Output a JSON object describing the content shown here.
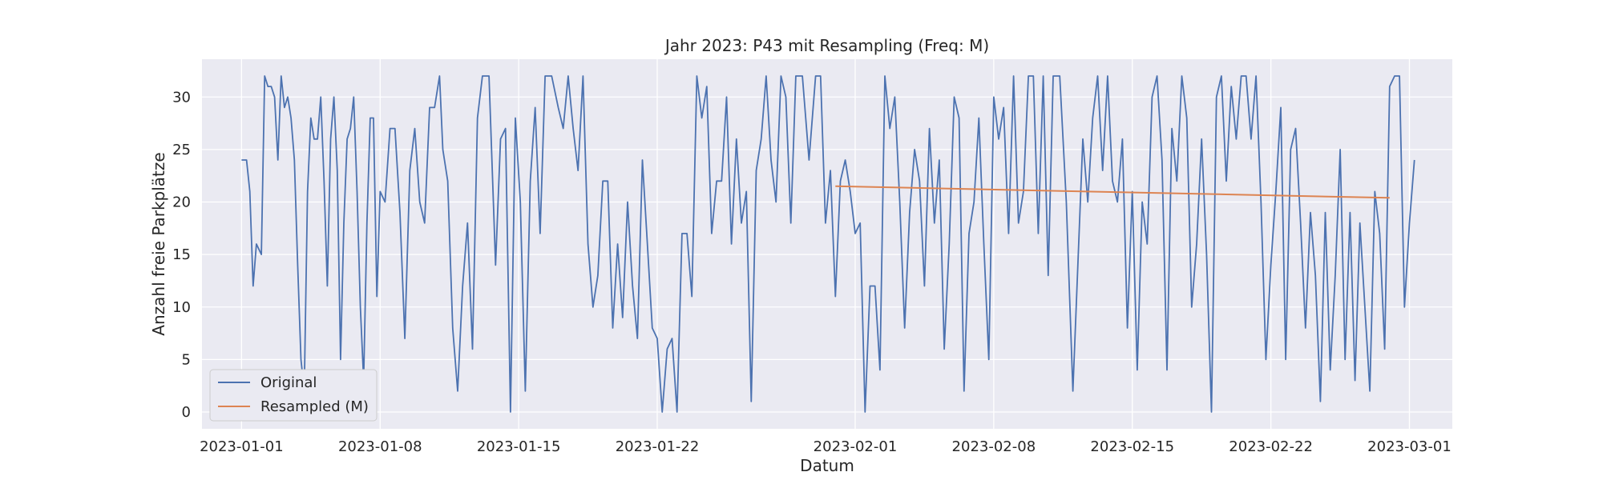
{
  "chart_data": {
    "type": "line",
    "title": "Jahr 2023: P43 mit Resampling (Freq: M)",
    "xlabel": "Datum",
    "ylabel": "Anzahl freie Parkplätze",
    "x_range": [
      "2022-12-30T00:00",
      "2023-03-03T04:00"
    ],
    "ylim": [
      -1.6,
      33.6
    ],
    "yticks": [
      0,
      5,
      10,
      15,
      20,
      25,
      30
    ],
    "xticks": [
      "2023-01-01",
      "2023-01-08",
      "2023-01-15",
      "2023-01-22",
      "2023-02-01",
      "2023-02-08",
      "2023-02-15",
      "2023-02-22",
      "2023-03-01"
    ],
    "grid": true,
    "legend_position": "lower-left",
    "colors": {
      "background": "#eaeaf2",
      "grid": "#ffffff",
      "original": "#4c72b0",
      "resampled": "#dd8452"
    },
    "series": [
      {
        "name": "Original",
        "color": "#4c72b0",
        "points": [
          [
            "2023-01-01T00:00",
            24
          ],
          [
            "2023-01-01T06:00",
            24
          ],
          [
            "2023-01-01T10:00",
            21
          ],
          [
            "2023-01-01T14:00",
            12
          ],
          [
            "2023-01-01T18:00",
            16
          ],
          [
            "2023-01-02T00:00",
            15
          ],
          [
            "2023-01-02T04:00",
            32
          ],
          [
            "2023-01-02T08:00",
            31
          ],
          [
            "2023-01-02T12:00",
            31
          ],
          [
            "2023-01-02T16:00",
            30
          ],
          [
            "2023-01-02T20:00",
            24
          ],
          [
            "2023-01-03T00:00",
            32
          ],
          [
            "2023-01-03T04:00",
            29
          ],
          [
            "2023-01-03T08:00",
            30
          ],
          [
            "2023-01-03T12:00",
            28
          ],
          [
            "2023-01-03T16:00",
            24
          ],
          [
            "2023-01-03T20:00",
            14
          ],
          [
            "2023-01-04T00:00",
            5
          ],
          [
            "2023-01-04T04:00",
            2
          ],
          [
            "2023-01-04T08:00",
            21
          ],
          [
            "2023-01-04T12:00",
            28
          ],
          [
            "2023-01-04T16:00",
            26
          ],
          [
            "2023-01-04T20:00",
            26
          ],
          [
            "2023-01-05T00:00",
            30
          ],
          [
            "2023-01-05T04:00",
            22
          ],
          [
            "2023-01-05T08:00",
            12
          ],
          [
            "2023-01-05T12:00",
            26
          ],
          [
            "2023-01-05T16:00",
            30
          ],
          [
            "2023-01-05T20:00",
            23
          ],
          [
            "2023-01-06T00:00",
            5
          ],
          [
            "2023-01-06T04:00",
            18
          ],
          [
            "2023-01-06T08:00",
            26
          ],
          [
            "2023-01-06T12:00",
            27
          ],
          [
            "2023-01-06T16:00",
            30
          ],
          [
            "2023-01-06T20:00",
            21
          ],
          [
            "2023-01-07T00:00",
            10
          ],
          [
            "2023-01-07T04:00",
            3
          ],
          [
            "2023-01-07T08:00",
            18
          ],
          [
            "2023-01-07T12:00",
            28
          ],
          [
            "2023-01-07T16:00",
            28
          ],
          [
            "2023-01-07T20:00",
            11
          ],
          [
            "2023-01-08T00:00",
            21
          ],
          [
            "2023-01-08T06:00",
            20
          ],
          [
            "2023-01-08T12:00",
            27
          ],
          [
            "2023-01-08T18:00",
            27
          ],
          [
            "2023-01-09T00:00",
            19
          ],
          [
            "2023-01-09T06:00",
            7
          ],
          [
            "2023-01-09T12:00",
            23
          ],
          [
            "2023-01-09T18:00",
            27
          ],
          [
            "2023-01-10T00:00",
            20
          ],
          [
            "2023-01-10T06:00",
            18
          ],
          [
            "2023-01-10T12:00",
            29
          ],
          [
            "2023-01-10T18:00",
            29
          ],
          [
            "2023-01-11T00:00",
            32
          ],
          [
            "2023-01-11T04:00",
            25
          ],
          [
            "2023-01-11T10:00",
            22
          ],
          [
            "2023-01-11T16:00",
            8
          ],
          [
            "2023-01-11T22:00",
            2
          ],
          [
            "2023-01-12T04:00",
            12
          ],
          [
            "2023-01-12T10:00",
            18
          ],
          [
            "2023-01-12T16:00",
            6
          ],
          [
            "2023-01-12T22:00",
            28
          ],
          [
            "2023-01-13T04:00",
            32
          ],
          [
            "2023-01-13T12:00",
            32
          ],
          [
            "2023-01-13T20:00",
            14
          ],
          [
            "2023-01-14T02:00",
            26
          ],
          [
            "2023-01-14T08:00",
            27
          ],
          [
            "2023-01-14T14:00",
            0
          ],
          [
            "2023-01-14T20:00",
            28
          ],
          [
            "2023-01-15T02:00",
            20
          ],
          [
            "2023-01-15T08:00",
            2
          ],
          [
            "2023-01-15T14:00",
            22
          ],
          [
            "2023-01-15T20:00",
            29
          ],
          [
            "2023-01-16T02:00",
            17
          ],
          [
            "2023-01-16T08:00",
            32
          ],
          [
            "2023-01-16T16:00",
            32
          ],
          [
            "2023-01-17T00:00",
            29
          ],
          [
            "2023-01-17T06:00",
            27
          ],
          [
            "2023-01-17T12:00",
            32
          ],
          [
            "2023-01-17T18:00",
            27
          ],
          [
            "2023-01-18T00:00",
            23
          ],
          [
            "2023-01-18T06:00",
            32
          ],
          [
            "2023-01-18T12:00",
            16
          ],
          [
            "2023-01-18T18:00",
            10
          ],
          [
            "2023-01-19T00:00",
            13
          ],
          [
            "2023-01-19T06:00",
            22
          ],
          [
            "2023-01-19T12:00",
            22
          ],
          [
            "2023-01-19T18:00",
            8
          ],
          [
            "2023-01-20T00:00",
            16
          ],
          [
            "2023-01-20T06:00",
            9
          ],
          [
            "2023-01-20T12:00",
            20
          ],
          [
            "2023-01-20T18:00",
            12
          ],
          [
            "2023-01-21T00:00",
            7
          ],
          [
            "2023-01-21T06:00",
            24
          ],
          [
            "2023-01-21T12:00",
            16
          ],
          [
            "2023-01-21T18:00",
            8
          ],
          [
            "2023-01-22T00:00",
            7
          ],
          [
            "2023-01-22T06:00",
            0
          ],
          [
            "2023-01-22T12:00",
            6
          ],
          [
            "2023-01-22T18:00",
            7
          ],
          [
            "2023-01-23T00:00",
            0
          ],
          [
            "2023-01-23T06:00",
            17
          ],
          [
            "2023-01-23T12:00",
            17
          ],
          [
            "2023-01-23T18:00",
            11
          ],
          [
            "2023-01-24T00:00",
            32
          ],
          [
            "2023-01-24T06:00",
            28
          ],
          [
            "2023-01-24T12:00",
            31
          ],
          [
            "2023-01-24T18:00",
            17
          ],
          [
            "2023-01-25T00:00",
            22
          ],
          [
            "2023-01-25T06:00",
            22
          ],
          [
            "2023-01-25T12:00",
            30
          ],
          [
            "2023-01-25T18:00",
            16
          ],
          [
            "2023-01-26T00:00",
            26
          ],
          [
            "2023-01-26T06:00",
            18
          ],
          [
            "2023-01-26T12:00",
            21
          ],
          [
            "2023-01-26T18:00",
            1
          ],
          [
            "2023-01-27T00:00",
            23
          ],
          [
            "2023-01-27T06:00",
            26
          ],
          [
            "2023-01-27T12:00",
            32
          ],
          [
            "2023-01-27T18:00",
            24
          ],
          [
            "2023-01-28T00:00",
            20
          ],
          [
            "2023-01-28T06:00",
            32
          ],
          [
            "2023-01-28T12:00",
            30
          ],
          [
            "2023-01-28T18:00",
            18
          ],
          [
            "2023-01-29T00:00",
            32
          ],
          [
            "2023-01-29T08:00",
            32
          ],
          [
            "2023-01-29T16:00",
            24
          ],
          [
            "2023-01-30T00:00",
            32
          ],
          [
            "2023-01-30T06:00",
            32
          ],
          [
            "2023-01-30T12:00",
            18
          ],
          [
            "2023-01-30T18:00",
            23
          ],
          [
            "2023-01-31T00:00",
            11
          ],
          [
            "2023-01-31T06:00",
            22
          ],
          [
            "2023-01-31T12:00",
            24
          ],
          [
            "2023-01-31T18:00",
            21
          ],
          [
            "2023-02-01T00:00",
            17
          ],
          [
            "2023-02-01T06:00",
            18
          ],
          [
            "2023-02-01T12:00",
            0
          ],
          [
            "2023-02-01T18:00",
            12
          ],
          [
            "2023-02-02T00:00",
            12
          ],
          [
            "2023-02-02T06:00",
            4
          ],
          [
            "2023-02-02T12:00",
            32
          ],
          [
            "2023-02-02T18:00",
            27
          ],
          [
            "2023-02-03T00:00",
            30
          ],
          [
            "2023-02-03T06:00",
            20
          ],
          [
            "2023-02-03T12:00",
            8
          ],
          [
            "2023-02-03T18:00",
            19
          ],
          [
            "2023-02-04T00:00",
            25
          ],
          [
            "2023-02-04T06:00",
            22
          ],
          [
            "2023-02-04T12:00",
            12
          ],
          [
            "2023-02-04T18:00",
            27
          ],
          [
            "2023-02-05T00:00",
            18
          ],
          [
            "2023-02-05T06:00",
            24
          ],
          [
            "2023-02-05T12:00",
            6
          ],
          [
            "2023-02-05T18:00",
            16
          ],
          [
            "2023-02-06T00:00",
            30
          ],
          [
            "2023-02-06T06:00",
            28
          ],
          [
            "2023-02-06T12:00",
            2
          ],
          [
            "2023-02-06T18:00",
            17
          ],
          [
            "2023-02-07T00:00",
            20
          ],
          [
            "2023-02-07T06:00",
            28
          ],
          [
            "2023-02-07T12:00",
            16
          ],
          [
            "2023-02-07T18:00",
            5
          ],
          [
            "2023-02-08T00:00",
            30
          ],
          [
            "2023-02-08T06:00",
            26
          ],
          [
            "2023-02-08T12:00",
            29
          ],
          [
            "2023-02-08T18:00",
            17
          ],
          [
            "2023-02-09T00:00",
            32
          ],
          [
            "2023-02-09T06:00",
            18
          ],
          [
            "2023-02-09T12:00",
            21
          ],
          [
            "2023-02-09T18:00",
            32
          ],
          [
            "2023-02-10T00:00",
            32
          ],
          [
            "2023-02-10T06:00",
            17
          ],
          [
            "2023-02-10T12:00",
            32
          ],
          [
            "2023-02-10T18:00",
            13
          ],
          [
            "2023-02-11T00:00",
            32
          ],
          [
            "2023-02-11T08:00",
            32
          ],
          [
            "2023-02-11T16:00",
            20
          ],
          [
            "2023-02-12T00:00",
            2
          ],
          [
            "2023-02-12T06:00",
            14
          ],
          [
            "2023-02-12T12:00",
            26
          ],
          [
            "2023-02-12T18:00",
            20
          ],
          [
            "2023-02-13T00:00",
            28
          ],
          [
            "2023-02-13T06:00",
            32
          ],
          [
            "2023-02-13T12:00",
            23
          ],
          [
            "2023-02-13T18:00",
            32
          ],
          [
            "2023-02-14T00:00",
            22
          ],
          [
            "2023-02-14T06:00",
            20
          ],
          [
            "2023-02-14T12:00",
            26
          ],
          [
            "2023-02-14T18:00",
            8
          ],
          [
            "2023-02-15T00:00",
            21
          ],
          [
            "2023-02-15T06:00",
            4
          ],
          [
            "2023-02-15T12:00",
            20
          ],
          [
            "2023-02-15T18:00",
            16
          ],
          [
            "2023-02-16T00:00",
            30
          ],
          [
            "2023-02-16T06:00",
            32
          ],
          [
            "2023-02-16T12:00",
            24
          ],
          [
            "2023-02-16T18:00",
            4
          ],
          [
            "2023-02-17T00:00",
            27
          ],
          [
            "2023-02-17T06:00",
            22
          ],
          [
            "2023-02-17T12:00",
            32
          ],
          [
            "2023-02-17T18:00",
            28
          ],
          [
            "2023-02-18T00:00",
            10
          ],
          [
            "2023-02-18T06:00",
            16
          ],
          [
            "2023-02-18T12:00",
            26
          ],
          [
            "2023-02-18T18:00",
            15
          ],
          [
            "2023-02-19T00:00",
            0
          ],
          [
            "2023-02-19T06:00",
            30
          ],
          [
            "2023-02-19T12:00",
            32
          ],
          [
            "2023-02-19T18:00",
            22
          ],
          [
            "2023-02-20T00:00",
            31
          ],
          [
            "2023-02-20T06:00",
            26
          ],
          [
            "2023-02-20T12:00",
            32
          ],
          [
            "2023-02-20T18:00",
            32
          ],
          [
            "2023-02-21T00:00",
            26
          ],
          [
            "2023-02-21T06:00",
            32
          ],
          [
            "2023-02-21T12:00",
            20
          ],
          [
            "2023-02-21T18:00",
            5
          ],
          [
            "2023-02-22T00:00",
            14
          ],
          [
            "2023-02-22T06:00",
            21
          ],
          [
            "2023-02-22T12:00",
            29
          ],
          [
            "2023-02-22T18:00",
            5
          ],
          [
            "2023-02-23T00:00",
            25
          ],
          [
            "2023-02-23T06:00",
            27
          ],
          [
            "2023-02-23T12:00",
            18
          ],
          [
            "2023-02-23T18:00",
            8
          ],
          [
            "2023-02-24T00:00",
            19
          ],
          [
            "2023-02-24T06:00",
            13
          ],
          [
            "2023-02-24T12:00",
            1
          ],
          [
            "2023-02-24T18:00",
            19
          ],
          [
            "2023-02-25T00:00",
            4
          ],
          [
            "2023-02-25T06:00",
            13
          ],
          [
            "2023-02-25T12:00",
            25
          ],
          [
            "2023-02-25T18:00",
            5
          ],
          [
            "2023-02-26T00:00",
            19
          ],
          [
            "2023-02-26T06:00",
            3
          ],
          [
            "2023-02-26T12:00",
            18
          ],
          [
            "2023-02-26T18:00",
            10
          ],
          [
            "2023-02-27T00:00",
            2
          ],
          [
            "2023-02-27T06:00",
            21
          ],
          [
            "2023-02-27T12:00",
            17
          ],
          [
            "2023-02-27T18:00",
            6
          ],
          [
            "2023-02-28T00:00",
            31
          ],
          [
            "2023-02-28T06:00",
            32
          ],
          [
            "2023-02-28T12:00",
            32
          ],
          [
            "2023-02-28T18:00",
            10
          ],
          [
            "2023-03-01T00:00",
            18
          ],
          [
            "2023-03-01T06:00",
            24
          ]
        ]
      },
      {
        "name": "Resampled (M)",
        "color": "#dd8452",
        "points": [
          [
            "2023-01-31T00:00",
            21.5
          ],
          [
            "2023-02-28T00:00",
            20.4
          ]
        ]
      }
    ]
  }
}
